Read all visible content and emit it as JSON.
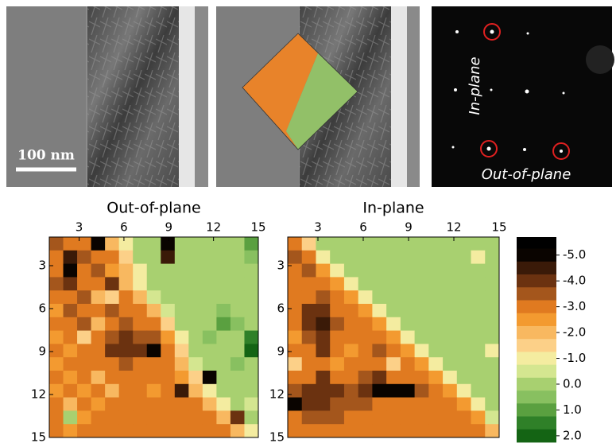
{
  "micrographs": {
    "scale_bar": "100 nm",
    "diffraction_labels": [
      "In-plane",
      "Out-of-plane"
    ]
  },
  "chart_data": [
    {
      "type": "heatmap",
      "title": "Out-of-plane",
      "xlim": [
        1,
        15
      ],
      "ylim": [
        1,
        15
      ],
      "xticks": [
        3,
        6,
        9,
        12,
        15
      ],
      "yticks": [
        3,
        6,
        9,
        12,
        15
      ],
      "values": [
        [
          -3.5,
          -3,
          -3,
          -5,
          -2,
          -1,
          0,
          0,
          -5,
          0,
          0,
          0,
          0,
          0,
          1
        ],
        [
          -3,
          -4.5,
          -3.5,
          -3,
          -3,
          -1.5,
          0,
          0,
          -4.5,
          0,
          0,
          0,
          0,
          0,
          0.5
        ],
        [
          -3,
          -5,
          -3,
          -3.5,
          -2.5,
          -2,
          -1,
          0,
          0,
          0,
          0,
          0,
          0,
          0,
          0
        ],
        [
          -3.5,
          -4,
          -3,
          -3,
          -4,
          -2,
          -1,
          0,
          0,
          0,
          0,
          0,
          0,
          0,
          0
        ],
        [
          -3,
          -3,
          -3.5,
          -2,
          -1.5,
          -3,
          -2,
          -0.5,
          0,
          0,
          0,
          0,
          0,
          0,
          0
        ],
        [
          -2.5,
          -3.5,
          -3,
          -3,
          -3.5,
          -3,
          -3,
          -2,
          -0.5,
          0,
          0,
          0,
          0.5,
          0,
          0
        ],
        [
          -3,
          -3,
          -3.5,
          -2,
          -3,
          -3.5,
          -3,
          -3,
          -1.5,
          0,
          0,
          0,
          1,
          0.5,
          0
        ],
        [
          -2.5,
          -3,
          -1.5,
          -3,
          -3.5,
          -4,
          -3.5,
          -3.5,
          -2.5,
          -1,
          0,
          0.5,
          0,
          0,
          1.5
        ],
        [
          -3,
          -2.5,
          -3,
          -3,
          -4,
          -4,
          -4,
          -5,
          -3,
          -1.5,
          0,
          0,
          0,
          0,
          2
        ],
        [
          -2.5,
          -3,
          -3,
          -3,
          -3,
          -3.5,
          -3,
          -3,
          -3,
          -2,
          -0.5,
          0,
          0,
          0.5,
          0
        ],
        [
          -3,
          -2.5,
          -3,
          -2,
          -3,
          -3,
          -3,
          -3,
          -3,
          -2.5,
          -1.5,
          -5,
          0,
          0,
          0
        ],
        [
          -2.5,
          -3,
          -2.5,
          -3,
          -2,
          -3,
          -3,
          -2.5,
          -3,
          -4.5,
          -2,
          -1,
          0,
          0,
          0
        ],
        [
          -3,
          -2,
          -3,
          -2.5,
          -3,
          -3,
          -3,
          -3,
          -3,
          -3,
          -3,
          -2,
          -1,
          0,
          -0.5
        ],
        [
          -3,
          0,
          -2.5,
          -3,
          -3,
          -3,
          -3,
          -3,
          -3,
          -3,
          -3,
          -3,
          -2,
          -4,
          0
        ],
        [
          -3,
          -2.5,
          -3,
          -3,
          -3,
          -3,
          -3,
          -3,
          -3,
          -3,
          -3,
          -3,
          -3,
          -2,
          -1
        ]
      ]
    },
    {
      "type": "heatmap",
      "title": "In-plane",
      "xlim": [
        1,
        15
      ],
      "ylim": [
        1,
        15
      ],
      "xticks": [
        3,
        6,
        9,
        12,
        15
      ],
      "yticks": [
        3,
        6,
        9,
        12,
        15
      ],
      "values": [
        [
          -3,
          -1.5,
          0,
          0,
          0,
          0,
          0,
          0,
          0,
          0,
          0,
          0,
          0,
          0,
          0
        ],
        [
          -3.5,
          -3,
          -1,
          0,
          0,
          0,
          0,
          0,
          0,
          0,
          0,
          0,
          0,
          -1,
          0
        ],
        [
          -3,
          -3.5,
          -2.5,
          -1,
          0,
          0,
          0,
          0,
          0,
          0,
          0,
          0,
          0,
          0,
          0
        ],
        [
          -3,
          -3,
          -3,
          -2.5,
          -1,
          0,
          0,
          0,
          0,
          0,
          0,
          0,
          0,
          0,
          0
        ],
        [
          -3,
          -3,
          -3.5,
          -3,
          -2.5,
          -1,
          0,
          0,
          0,
          0,
          0,
          0,
          0,
          0,
          0
        ],
        [
          -3,
          -4,
          -4,
          -3,
          -3,
          -2.5,
          -1,
          0,
          0,
          0,
          0,
          0,
          0,
          0,
          0
        ],
        [
          -3,
          -4,
          -4.5,
          -3.5,
          -3,
          -3,
          -2.5,
          -1,
          0,
          0,
          0,
          0,
          0,
          0,
          0
        ],
        [
          -2.5,
          -3.5,
          -4,
          -3,
          -3,
          -3,
          -3,
          -2.5,
          -1,
          0,
          0,
          0,
          0,
          0,
          0
        ],
        [
          -3,
          -3,
          -4,
          -3,
          -2.5,
          -3,
          -3.5,
          -3,
          -2.5,
          -1,
          0,
          0,
          0,
          0,
          -1
        ],
        [
          -1.5,
          -3,
          -3,
          -2.5,
          -3,
          -3,
          -3,
          -1.5,
          -3,
          -2.5,
          -1,
          0,
          0,
          0,
          0
        ],
        [
          -3,
          -3,
          -4,
          -3,
          -3,
          -3.5,
          -4,
          -3,
          -3,
          -3,
          -2.5,
          -1,
          0,
          0,
          0
        ],
        [
          -3.5,
          -4,
          -4,
          -4,
          -3.5,
          -4,
          -5,
          -5,
          -5,
          -3.5,
          -3,
          -2.5,
          -1,
          0,
          0
        ],
        [
          -5,
          -4,
          -4,
          -3.5,
          -3.5,
          -3.5,
          -3,
          -3,
          -3,
          -3,
          -3,
          -3,
          -2.5,
          -1,
          0
        ],
        [
          -3,
          -3.5,
          -3.5,
          -3.5,
          -3,
          -3,
          -3,
          -3,
          -3,
          -3,
          -3,
          -3,
          -3,
          -2.5,
          -0.5
        ],
        [
          -3,
          -3,
          -3,
          -3,
          -3,
          -3,
          -3,
          -3,
          -3,
          -3,
          -3,
          -3,
          -3,
          -3,
          -2
        ]
      ]
    },
    {
      "type": "colorbar",
      "ylim": [
        -5.7,
        2.25
      ],
      "yticks": [
        {
          "value": -5,
          "label": "-5.0"
        },
        {
          "value": -4,
          "label": "-4.0"
        },
        {
          "value": -3,
          "label": "-3.0"
        },
        {
          "value": -2,
          "label": "-2.0"
        },
        {
          "value": -1,
          "label": "-1.0"
        },
        {
          "value": 0,
          "label": "0.0"
        },
        {
          "value": 1,
          "label": "1.0"
        },
        {
          "value": 2,
          "label": "2.0"
        }
      ],
      "levels": [
        {
          "value": -5.5,
          "color": "#000000"
        },
        {
          "value": -5,
          "color": "#0a0400"
        },
        {
          "value": -4.5,
          "color": "#3a1a08"
        },
        {
          "value": -4,
          "color": "#6b3210"
        },
        {
          "value": -3.5,
          "color": "#a4561c"
        },
        {
          "value": -3,
          "color": "#e07a20"
        },
        {
          "value": -2.5,
          "color": "#f39a30"
        },
        {
          "value": -2,
          "color": "#f8b860"
        },
        {
          "value": -1.5,
          "color": "#fcd088"
        },
        {
          "value": -1,
          "color": "#f4eca0"
        },
        {
          "value": -0.5,
          "color": "#d4e690"
        },
        {
          "value": 0,
          "color": "#a8d070"
        },
        {
          "value": 0.5,
          "color": "#88c060"
        },
        {
          "value": 1,
          "color": "#5aa040"
        },
        {
          "value": 1.5,
          "color": "#2f8028"
        },
        {
          "value": 2,
          "color": "#146414"
        }
      ]
    }
  ]
}
